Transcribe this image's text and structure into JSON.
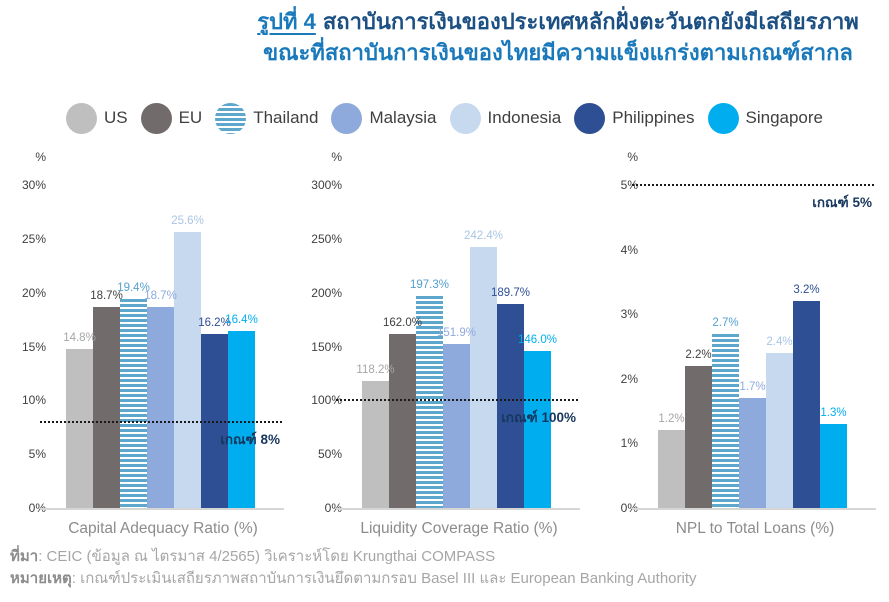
{
  "title": {
    "prefix": "รูปที่ 4",
    "line1": "สถาบันการเงินของประเทศหลักฝั่งตะวันตกยังมีเสถียรภาพ",
    "line2": "ขณะที่สถาบันการเงินของไทยมีความแข็งแกร่งตามเกณฑ์สากล"
  },
  "legend": {
    "items": [
      {
        "label": "US",
        "color": "#bfbfbf",
        "label_color": "#a6a6a6",
        "pattern": "solid"
      },
      {
        "label": "EU",
        "color": "#716b6b",
        "label_color": "#3f3f3f",
        "pattern": "solid"
      },
      {
        "label": "Thailand",
        "color": "#5da7cd",
        "label_color": "#56a0ce",
        "pattern": "stripes"
      },
      {
        "label": "Malaysia",
        "color": "#8ea9db",
        "label_color": "#8faadc",
        "pattern": "solid"
      },
      {
        "label": "Indonesia",
        "color": "#c6d9ef",
        "label_color": "#a9c5e5",
        "pattern": "solid"
      },
      {
        "label": "Philippines",
        "color": "#2e4f93",
        "label_color": "#2e4f93",
        "pattern": "solid"
      },
      {
        "label": "Singapore",
        "color": "#00aeef",
        "label_color": "#00aeef",
        "pattern": "solid"
      }
    ]
  },
  "chart_data": [
    {
      "type": "bar",
      "title": "Capital Adequacy Ratio (%)",
      "categories": [
        "US",
        "EU",
        "Thailand",
        "Malaysia",
        "Indonesia",
        "Philippines",
        "Singapore"
      ],
      "values": [
        14.8,
        18.7,
        19.4,
        18.7,
        25.6,
        16.2,
        16.4
      ],
      "value_labels": [
        "14.8%",
        "18.7%",
        "19.4%",
        "18.7%",
        "25.6%",
        "16.2%",
        "16.4%"
      ],
      "unit_label": "%",
      "yticks": [
        "30%",
        "25%",
        "20%",
        "15%",
        "10%",
        "5%",
        "0%"
      ],
      "ylim": [
        0,
        30
      ],
      "grid": false,
      "legend_position": "top",
      "threshold": {
        "value": 8,
        "label": "เกณฑ์ 8%"
      }
    },
    {
      "type": "bar",
      "title": "Liquidity Coverage Ratio (%)",
      "categories": [
        "US",
        "EU",
        "Thailand",
        "Malaysia",
        "Indonesia",
        "Philippines",
        "Singapore"
      ],
      "values": [
        118.2,
        162.0,
        197.3,
        151.9,
        242.4,
        189.7,
        146.0
      ],
      "value_labels": [
        "118.2%",
        "162.0%",
        "197.3%",
        "151.9%",
        "242.4%",
        "189.7%",
        "146.0%"
      ],
      "unit_label": "%",
      "yticks": [
        "300%",
        "250%",
        "200%",
        "150%",
        "100%",
        "50%",
        "0%"
      ],
      "ylim": [
        0,
        300
      ],
      "grid": false,
      "legend_position": "top",
      "threshold": {
        "value": 100,
        "label": "เกณฑ์ 100%"
      }
    },
    {
      "type": "bar",
      "title": "NPL to Total Loans (%)",
      "categories": [
        "US",
        "EU",
        "Thailand",
        "Malaysia",
        "Indonesia",
        "Philippines",
        "Singapore"
      ],
      "values": [
        1.2,
        2.2,
        2.7,
        1.7,
        2.4,
        3.2,
        1.3
      ],
      "value_labels": [
        "1.2%",
        "2.2%",
        "2.7%",
        "1.7%",
        "2.4%",
        "3.2%",
        "1.3%"
      ],
      "unit_label": "%",
      "yticks": [
        "5%",
        "4%",
        "3%",
        "2%",
        "1%",
        "0%"
      ],
      "ylim": [
        0,
        5
      ],
      "grid": false,
      "legend_position": "top",
      "threshold": {
        "value": 5,
        "label": "เกณฑ์ 5%"
      }
    }
  ],
  "footer": {
    "source_prefix": "ที่มา",
    "source_text": ": CEIC (ข้อมูล ณ ไตรมาส 4/2565) วิเคราะห์โดย Krungthai COMPASS",
    "note_prefix": "หมายเหตุ",
    "note_text": ": เกณฑ์ประเมินเสถียรภาพสถาบันการเงินยึดตามกรอบ Basel III และ European Banking Authority"
  },
  "colors": {
    "title_navy": "#1c4f82",
    "title_accent": "#1a79bb",
    "threshold_line": "#1a1a1a",
    "threshold_label": "#17365d",
    "tick_label": "#404040",
    "caption": "#8c8c8c",
    "footer": "#a6a6a6",
    "baseline": "#d6d6d6"
  }
}
